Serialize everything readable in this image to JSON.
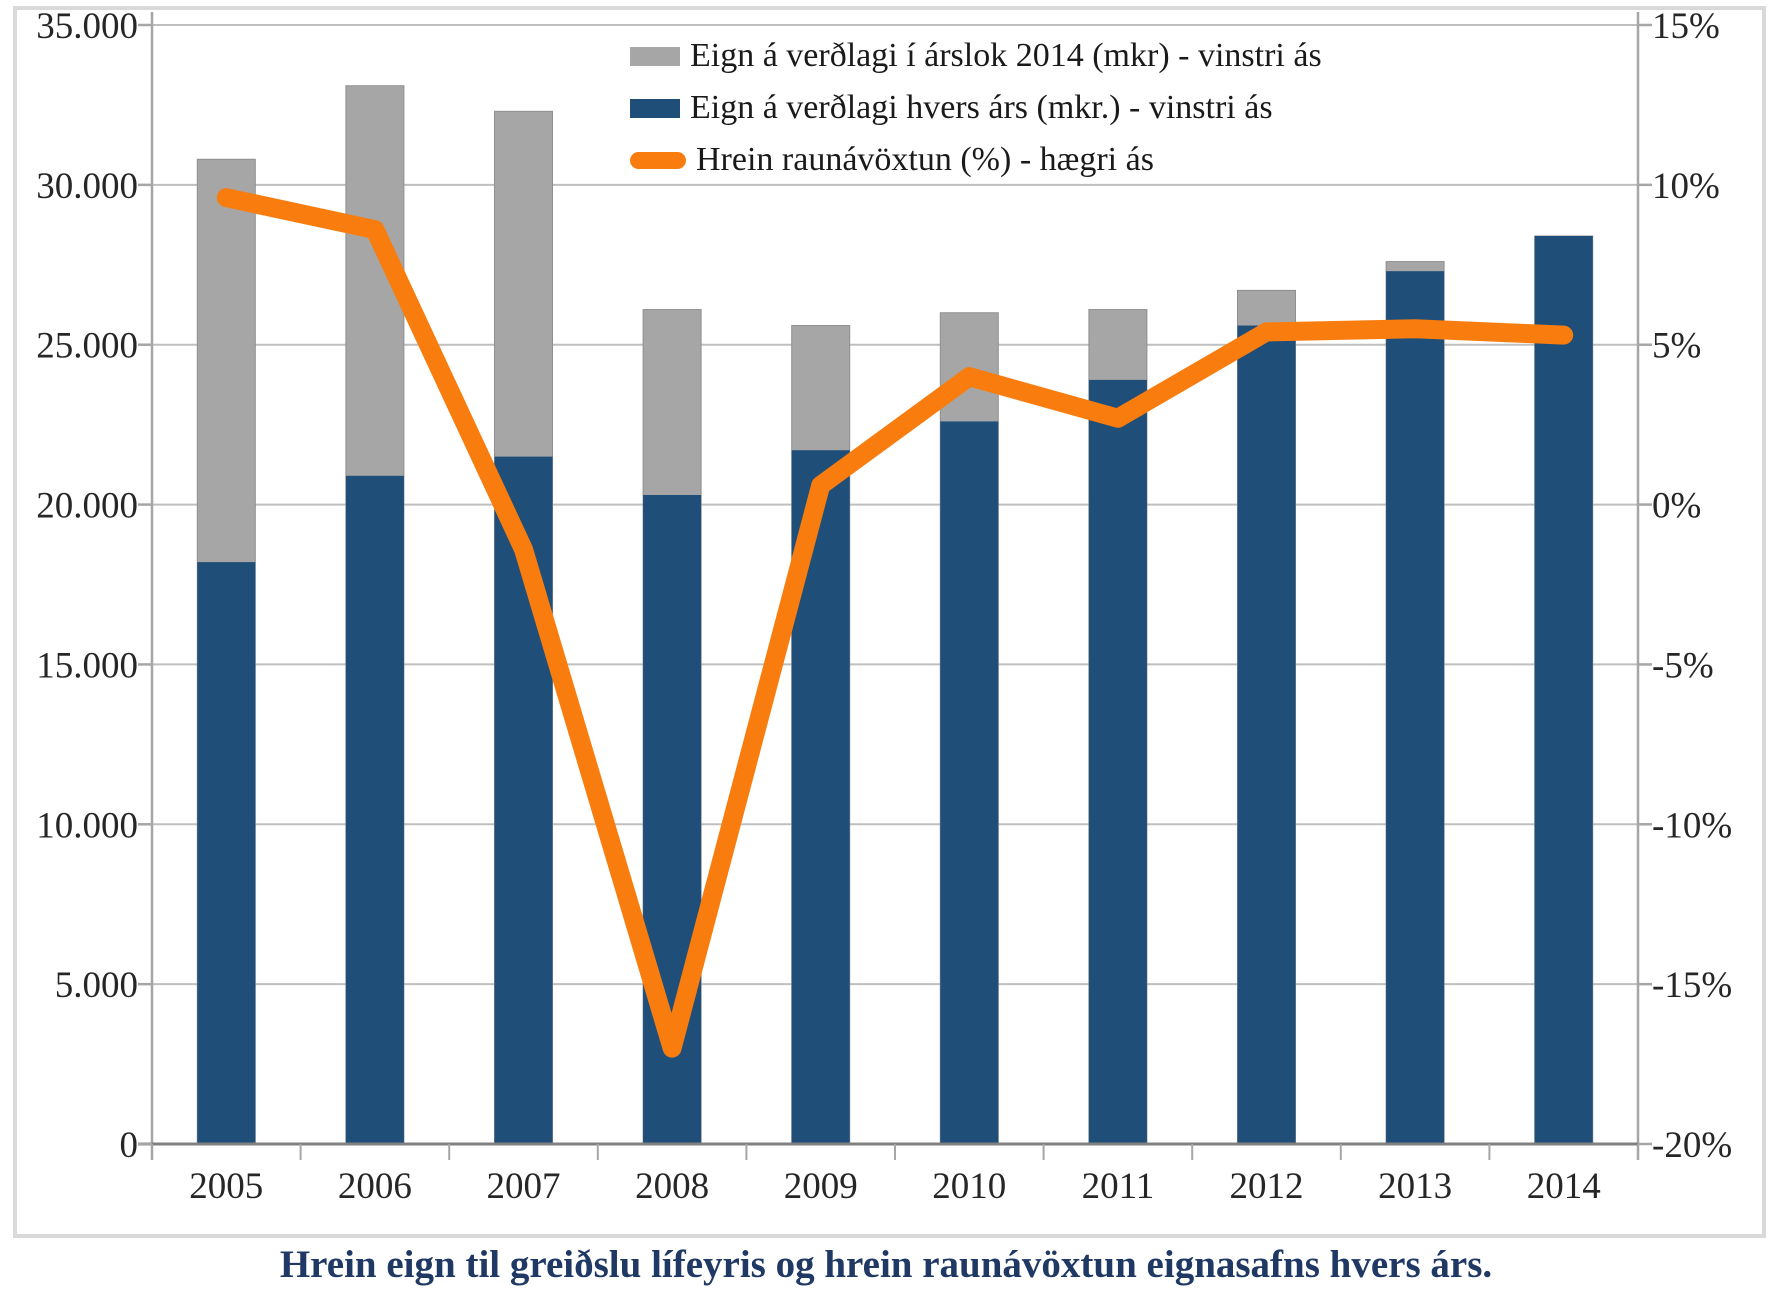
{
  "caption": {
    "text": "Hrein eign til greiðslu lífeyris og hrein raunávöxtun eignasafns hvers árs.",
    "color": "#1F3864"
  },
  "colors": {
    "grid": "#BFBFBF",
    "axis": "#A6A6A6",
    "baseline": "#808080",
    "tick_text": "#262626",
    "frame": "#D9D9D9",
    "gray_bar_outline": "#8F8F8F"
  },
  "chart_data": {
    "type": "combo",
    "categories": [
      "2005",
      "2006",
      "2007",
      "2008",
      "2009",
      "2010",
      "2011",
      "2012",
      "2013",
      "2014"
    ],
    "series": [
      {
        "name": "Eign á verðlagi í árslok 2014 (mkr) - vinstri ás",
        "type": "bar",
        "axis": "left",
        "color": "#A6A6A6",
        "values": [
          30800,
          33100,
          32300,
          26100,
          25600,
          26000,
          26100,
          26700,
          27600,
          28400
        ]
      },
      {
        "name": "Eign á verðlagi hvers árs (mkr.) - vinstri ás",
        "type": "bar",
        "axis": "left",
        "color": "#1F4E79",
        "values": [
          18200,
          20900,
          21500,
          20300,
          21700,
          22600,
          23900,
          25600,
          27300,
          28400
        ]
      },
      {
        "name": "Hrein raunávöxtun (%) - hægri ás",
        "type": "line",
        "axis": "right",
        "color": "#F87D0E",
        "values": [
          9.6,
          8.6,
          -1.4,
          -17.0,
          0.6,
          4.0,
          2.7,
          5.4,
          5.5,
          5.3
        ]
      }
    ],
    "left_axis": {
      "min": 0,
      "max": 35000,
      "step": 5000,
      "tick_labels": [
        "35.000",
        "30.000",
        "25.000",
        "20.000",
        "15.000",
        "10.000",
        "5.000",
        "0"
      ]
    },
    "right_axis": {
      "min": -20,
      "max": 15,
      "step": 5,
      "tick_labels": [
        "15%",
        "10%",
        "5%",
        "0%",
        "-5%",
        "-10%",
        "-15%",
        "-20%"
      ]
    },
    "grid": "horizontal",
    "legend_position": "top-center",
    "bars_overlap": "gray series drawn behind blue series (not stacked)"
  }
}
